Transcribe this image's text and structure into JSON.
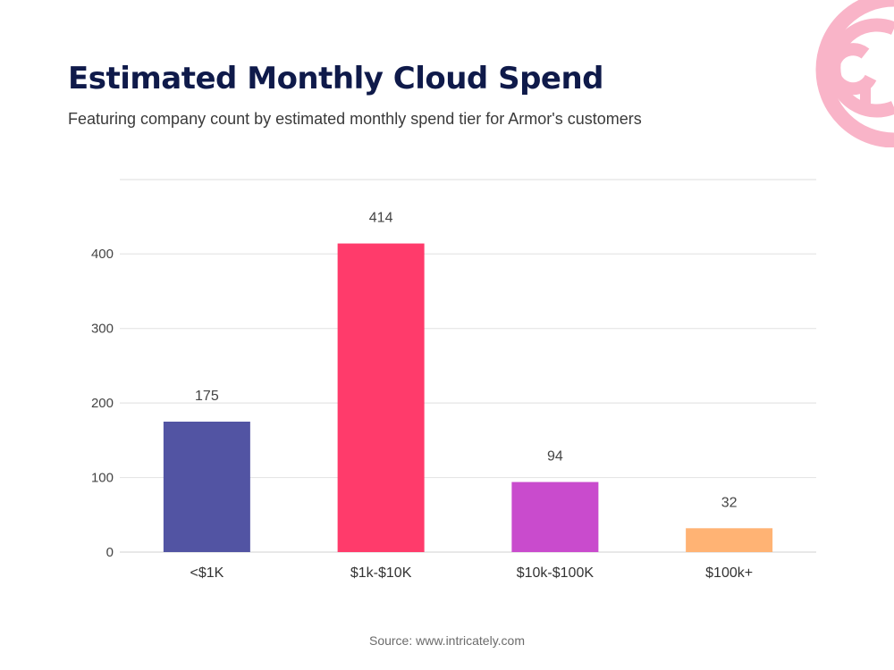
{
  "header": {
    "title": "Estimated Monthly Cloud Spend",
    "subtitle": "Featuring company count by estimated monthly spend tier for Armor's customers"
  },
  "footer": {
    "source": "Source: www.intricately.com"
  },
  "logo": {
    "icon": "brand-target-logo-icon",
    "color": "#f9b4c8"
  },
  "chart_data": {
    "type": "bar",
    "title": "Estimated Monthly Cloud Spend",
    "subtitle": "Featuring company count by estimated monthly spend tier for Armor's customers",
    "xlabel": "",
    "ylabel": "",
    "categories": [
      "<$1K",
      "$1k-$10K",
      "$10k-$100K",
      "$100k+"
    ],
    "values": [
      175,
      414,
      94,
      32
    ],
    "value_labels": [
      "175",
      "414",
      "94",
      "32"
    ],
    "colors": [
      "#5254a3",
      "#ff3b6b",
      "#c94bcd",
      "#ffb374"
    ],
    "ylim": [
      0,
      500
    ],
    "yticks": [
      0,
      100,
      200,
      300,
      400
    ],
    "ytick_labels": [
      "0",
      "100",
      "200",
      "300",
      "400"
    ],
    "grid": true,
    "legend": "none"
  }
}
